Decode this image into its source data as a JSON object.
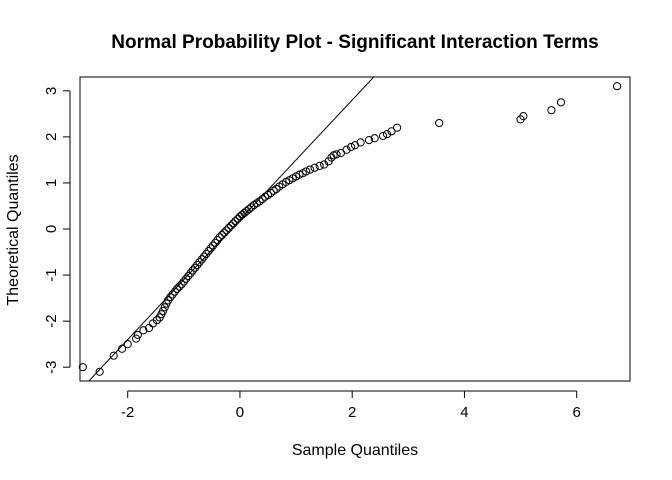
{
  "chart_data": {
    "type": "scatter",
    "title": "Normal Probability Plot - Significant Interaction Terms",
    "xlabel": "Sample Quantiles",
    "ylabel": "Theoretical Quantiles",
    "xlim": [
      -2.85,
      6.95
    ],
    "ylim": [
      -3.3,
      3.3
    ],
    "x_ticks": [
      -2,
      0,
      2,
      4,
      6
    ],
    "y_ticks": [
      -3,
      -2,
      -1,
      0,
      1,
      2,
      3
    ],
    "grid": false,
    "reference_line": {
      "slope": 1.3,
      "intercept": 0.2
    },
    "marker": "open-circle",
    "colors": {
      "points": "#000000",
      "line": "#000000",
      "background": "#ffffff"
    },
    "points": [
      [
        -2.5,
        -3.1
      ],
      [
        -2.25,
        -2.75
      ],
      [
        -2.1,
        -2.6
      ],
      [
        -2.0,
        -2.5
      ],
      [
        -1.85,
        -2.38
      ],
      [
        -1.82,
        -2.3
      ],
      [
        -1.72,
        -2.2
      ],
      [
        -1.62,
        -2.15
      ],
      [
        -1.55,
        -2.05
      ],
      [
        -1.48,
        -1.98
      ],
      [
        -1.43,
        -1.92
      ],
      [
        -1.4,
        -1.85
      ],
      [
        -2.8,
        -3.0
      ],
      [
        -1.37,
        -1.78
      ],
      [
        -1.34,
        -1.7
      ],
      [
        -1.31,
        -1.62
      ],
      [
        -1.28,
        -1.55
      ],
      [
        -1.24,
        -1.48
      ],
      [
        -1.2,
        -1.42
      ],
      [
        -1.16,
        -1.36
      ],
      [
        -1.12,
        -1.3
      ],
      [
        -1.08,
        -1.25
      ],
      [
        -1.04,
        -1.2
      ],
      [
        -1.0,
        -1.14
      ],
      [
        -0.96,
        -1.08
      ],
      [
        -0.92,
        -1.02
      ],
      [
        -0.88,
        -0.96
      ],
      [
        -0.84,
        -0.9
      ],
      [
        -0.8,
        -0.84
      ],
      [
        -0.76,
        -0.78
      ],
      [
        -0.72,
        -0.72
      ],
      [
        -0.68,
        -0.66
      ],
      [
        -0.64,
        -0.6
      ],
      [
        -0.6,
        -0.54
      ],
      [
        -0.56,
        -0.48
      ],
      [
        -0.52,
        -0.42
      ],
      [
        -0.48,
        -0.36
      ],
      [
        -0.44,
        -0.3
      ],
      [
        -0.4,
        -0.24
      ],
      [
        -0.36,
        -0.18
      ],
      [
        -0.32,
        -0.13
      ],
      [
        -0.28,
        -0.08
      ],
      [
        -0.24,
        -0.03
      ],
      [
        -0.2,
        0.02
      ],
      [
        -0.16,
        0.07
      ],
      [
        -0.12,
        0.12
      ],
      [
        -0.08,
        0.17
      ],
      [
        -0.04,
        0.22
      ],
      [
        0.0,
        0.27
      ],
      [
        0.04,
        0.31
      ],
      [
        0.08,
        0.35
      ],
      [
        0.12,
        0.39
      ],
      [
        0.16,
        0.43
      ],
      [
        0.2,
        0.47
      ],
      [
        0.25,
        0.52
      ],
      [
        0.3,
        0.56
      ],
      [
        0.35,
        0.6
      ],
      [
        0.4,
        0.65
      ],
      [
        0.45,
        0.7
      ],
      [
        0.5,
        0.74
      ],
      [
        0.55,
        0.78
      ],
      [
        0.6,
        0.83
      ],
      [
        0.65,
        0.87
      ],
      [
        0.7,
        0.92
      ],
      [
        0.76,
        0.97
      ],
      [
        0.82,
        1.02
      ],
      [
        0.88,
        1.06
      ],
      [
        0.94,
        1.1
      ],
      [
        1.0,
        1.14
      ],
      [
        1.06,
        1.18
      ],
      [
        1.12,
        1.21
      ],
      [
        1.18,
        1.25
      ],
      [
        1.25,
        1.29
      ],
      [
        1.33,
        1.33
      ],
      [
        1.42,
        1.37
      ],
      [
        1.5,
        1.4
      ],
      [
        1.58,
        1.47
      ],
      [
        1.63,
        1.55
      ],
      [
        1.67,
        1.6
      ],
      [
        1.72,
        1.62
      ],
      [
        1.8,
        1.65
      ],
      [
        1.9,
        1.72
      ],
      [
        1.98,
        1.78
      ],
      [
        2.05,
        1.82
      ],
      [
        2.15,
        1.88
      ],
      [
        2.3,
        1.93
      ],
      [
        2.4,
        1.97
      ],
      [
        2.55,
        2.02
      ],
      [
        2.62,
        2.06
      ],
      [
        2.7,
        2.12
      ],
      [
        2.8,
        2.2
      ],
      [
        3.55,
        2.3
      ],
      [
        5.0,
        2.38
      ],
      [
        5.05,
        2.45
      ],
      [
        5.55,
        2.58
      ],
      [
        5.72,
        2.75
      ],
      [
        6.72,
        3.1
      ]
    ]
  }
}
